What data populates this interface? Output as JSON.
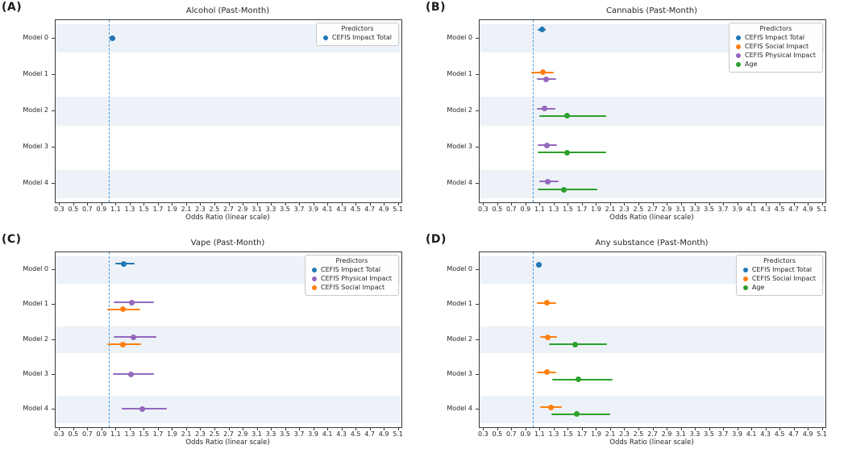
{
  "axis": {
    "xlabel": "Odds Ratio (linear scale)",
    "xlim": [
      0.25,
      5.15
    ],
    "x_ticks": [
      "0.3",
      "0.5",
      "0.7",
      "0.9",
      "1.1",
      "1.3",
      "1.5",
      "1.7",
      "1.9",
      "2.1",
      "2.3",
      "2.5",
      "2.7",
      "2.9",
      "3.1",
      "3.3",
      "3.5",
      "3.7",
      "3.9",
      "4.1",
      "4.3",
      "4.5",
      "4.7",
      "4.9",
      "5.1"
    ],
    "reference_line_x": 1.0,
    "y_categories": [
      "Model 0",
      "Model 1",
      "Model 2",
      "Model 3",
      "Model 4"
    ]
  },
  "colors": {
    "series": {
      "CEFIS Impact Total": "#1f77b4",
      "CEFIS Social Impact": "#ff7f0e",
      "CEFIS Physical Impact": "#9467bd",
      "Age": "#2ca02c"
    },
    "reference_line": "#4d9fd6",
    "row_band": "#edf2f8"
  },
  "chart_data": [
    {
      "type": "forest",
      "panel_label": "(A)",
      "title": "Alcohol (Past-Month)",
      "xlabel": "Odds Ratio (linear scale)",
      "legend_title": "Predictors",
      "legend_entries": [
        "CEFIS Impact Total"
      ],
      "series": [
        {
          "name": "CEFIS Impact Total",
          "points": [
            {
              "model": 0,
              "or": 1.06,
              "ci_low": 1.01,
              "ci_high": 1.1,
              "dy": 0
            }
          ]
        }
      ]
    },
    {
      "type": "forest",
      "panel_label": "(B)",
      "title": "Cannabis (Past-Month)",
      "xlabel": "Odds Ratio (linear scale)",
      "legend_title": "Predictors",
      "legend_entries": [
        "CEFIS Impact Total",
        "CEFIS Social Impact",
        "CEFIS Physical Impact",
        "Age"
      ],
      "series": [
        {
          "name": "CEFIS Impact Total",
          "points": [
            {
              "model": 0,
              "or": 1.13,
              "ci_low": 1.07,
              "ci_high": 1.19,
              "dy": -0.24
            }
          ]
        },
        {
          "name": "CEFIS Social Impact",
          "points": [
            {
              "model": 1,
              "or": 1.15,
              "ci_low": 0.98,
              "ci_high": 1.3,
              "dy": -0.07
            }
          ]
        },
        {
          "name": "CEFIS Physical Impact",
          "points": [
            {
              "model": 1,
              "or": 1.19,
              "ci_low": 1.06,
              "ci_high": 1.33,
              "dy": 0.12
            },
            {
              "model": 2,
              "or": 1.17,
              "ci_low": 1.06,
              "ci_high": 1.32,
              "dy": -0.07
            },
            {
              "model": 3,
              "or": 1.2,
              "ci_low": 1.07,
              "ci_high": 1.35,
              "dy": -0.07
            },
            {
              "model": 4,
              "or": 1.22,
              "ci_low": 1.09,
              "ci_high": 1.37,
              "dy": -0.07
            }
          ]
        },
        {
          "name": "Age",
          "points": [
            {
              "model": 2,
              "or": 1.49,
              "ci_low": 1.09,
              "ci_high": 2.04,
              "dy": 0.13
            },
            {
              "model": 3,
              "or": 1.49,
              "ci_low": 1.07,
              "ci_high": 2.04,
              "dy": 0.13
            },
            {
              "model": 4,
              "or": 1.44,
              "ci_low": 1.07,
              "ci_high": 1.92,
              "dy": 0.15
            }
          ]
        }
      ]
    },
    {
      "type": "forest",
      "panel_label": "(C)",
      "title": "Vape (Past-Month)",
      "xlabel": "Odds Ratio (linear scale)",
      "legend_title": "Predictors",
      "legend_entries": [
        "CEFIS Impact Total",
        "CEFIS Physical Impact",
        "CEFIS Social Impact"
      ],
      "series": [
        {
          "name": "CEFIS Impact Total",
          "points": [
            {
              "model": 0,
              "or": 1.22,
              "ci_low": 1.09,
              "ci_high": 1.37,
              "dy": -0.17
            }
          ]
        },
        {
          "name": "CEFIS Physical Impact",
          "points": [
            {
              "model": 1,
              "or": 1.33,
              "ci_low": 1.07,
              "ci_high": 1.64,
              "dy": -0.07
            },
            {
              "model": 2,
              "or": 1.35,
              "ci_low": 1.07,
              "ci_high": 1.68,
              "dy": -0.07
            },
            {
              "model": 3,
              "or": 1.32,
              "ci_low": 1.06,
              "ci_high": 1.64,
              "dy": -0.02
            },
            {
              "model": 4,
              "or": 1.48,
              "ci_low": 1.19,
              "ci_high": 1.83,
              "dy": -0.02
            }
          ]
        },
        {
          "name": "CEFIS Social Impact",
          "points": [
            {
              "model": 1,
              "or": 1.2,
              "ci_low": 0.98,
              "ci_high": 1.45,
              "dy": 0.13
            },
            {
              "model": 2,
              "or": 1.2,
              "ci_low": 0.98,
              "ci_high": 1.46,
              "dy": 0.13
            }
          ]
        }
      ]
    },
    {
      "type": "forest",
      "panel_label": "(D)",
      "title": "Any substance (Past-Month)",
      "xlabel": "Odds Ratio (linear scale)",
      "legend_title": "Predictors",
      "legend_entries": [
        "CEFIS Impact Total",
        "CEFIS Social Impact",
        "Age"
      ],
      "series": [
        {
          "name": "CEFIS Impact Total",
          "points": [
            {
              "model": 0,
              "or": 1.09,
              "ci_low": 1.05,
              "ci_high": 1.13,
              "dy": -0.15
            }
          ]
        },
        {
          "name": "CEFIS Social Impact",
          "points": [
            {
              "model": 1,
              "or": 1.2,
              "ci_low": 1.06,
              "ci_high": 1.34,
              "dy": -0.05
            },
            {
              "model": 2,
              "or": 1.22,
              "ci_low": 1.11,
              "ci_high": 1.35,
              "dy": -0.07
            },
            {
              "model": 3,
              "or": 1.2,
              "ci_low": 1.06,
              "ci_high": 1.34,
              "dy": -0.07
            },
            {
              "model": 4,
              "or": 1.26,
              "ci_low": 1.11,
              "ci_high": 1.41,
              "dy": -0.07
            }
          ]
        },
        {
          "name": "Age",
          "points": [
            {
              "model": 2,
              "or": 1.6,
              "ci_low": 1.23,
              "ci_high": 2.06,
              "dy": 0.13
            },
            {
              "model": 3,
              "or": 1.65,
              "ci_low": 1.28,
              "ci_high": 2.13,
              "dy": 0.13
            },
            {
              "model": 4,
              "or": 1.63,
              "ci_low": 1.27,
              "ci_high": 2.1,
              "dy": 0.13
            }
          ]
        }
      ]
    }
  ]
}
